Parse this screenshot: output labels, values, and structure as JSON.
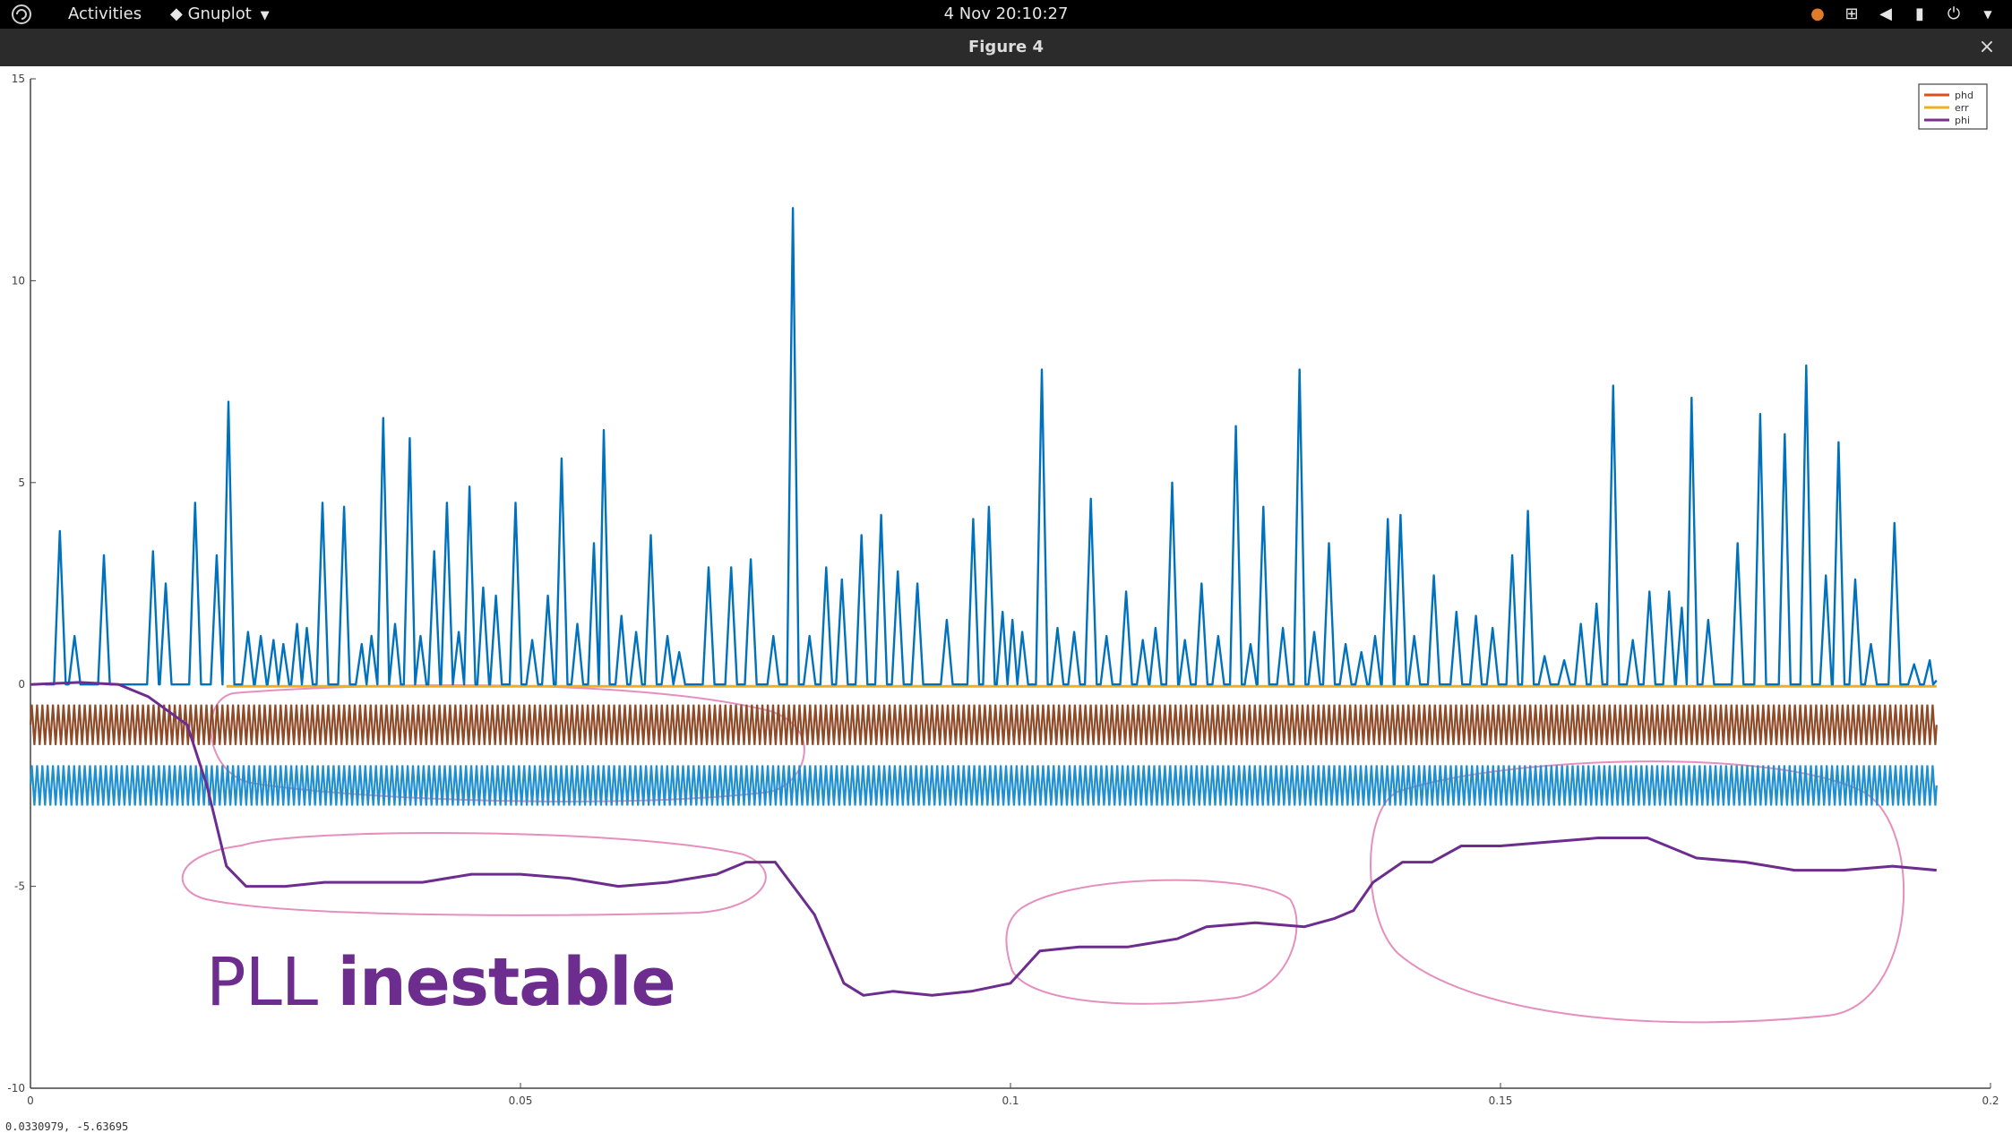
{
  "topbar": {
    "activities": "Activities",
    "app_name": "Gnuplot",
    "clock": "4 Nov  20:10:27",
    "tray_icons": [
      "notification-icon",
      "network-icon",
      "volume-icon",
      "battery-icon",
      "power-icon"
    ]
  },
  "window": {
    "title": "Figure 4",
    "close_glyph": "×"
  },
  "overlay": {
    "text_light": "PLL ",
    "text_bold": "inestable",
    "color": "#6d2d8e"
  },
  "status": {
    "coords": "0.0330979, -5.63695"
  },
  "chart_data": {
    "type": "line",
    "xlim": [
      0,
      0.2
    ],
    "ylim": [
      -10,
      15
    ],
    "x_ticks": [
      0,
      0.05,
      0.1,
      0.15,
      0.2
    ],
    "x_tick_labels": [
      "0",
      "0.05",
      "0.1",
      "0.15",
      "0.2"
    ],
    "y_ticks": [
      -10,
      -5,
      0,
      5,
      10,
      15
    ],
    "y_tick_labels": [
      "-10",
      "-5",
      "0",
      "5",
      "10",
      "15"
    ],
    "legend": {
      "placement": "top-right",
      "entries": [
        {
          "name": "phd",
          "color": "#d9531e"
        },
        {
          "name": "err",
          "color": "#edb120"
        },
        {
          "name": "phi",
          "color": "#7e2f8e"
        }
      ]
    },
    "spike_series": {
      "color": "#0072bd",
      "baseline": 0,
      "peaks": [
        [
          0.003,
          3.8
        ],
        [
          0.0045,
          1.2
        ],
        [
          0.0075,
          3.2
        ],
        [
          0.0125,
          3.3
        ],
        [
          0.0138,
          2.5
        ],
        [
          0.0168,
          4.5
        ],
        [
          0.019,
          3.2
        ],
        [
          0.0202,
          7.0
        ],
        [
          0.0222,
          1.3
        ],
        [
          0.0235,
          1.2
        ],
        [
          0.0248,
          1.1
        ],
        [
          0.0258,
          1.0
        ],
        [
          0.0272,
          1.5
        ],
        [
          0.0282,
          1.4
        ],
        [
          0.0298,
          4.5
        ],
        [
          0.032,
          4.4
        ],
        [
          0.0338,
          1.0
        ],
        [
          0.0348,
          1.2
        ],
        [
          0.036,
          6.6
        ],
        [
          0.0372,
          1.5
        ],
        [
          0.0387,
          6.1
        ],
        [
          0.0398,
          1.2
        ],
        [
          0.0412,
          3.3
        ],
        [
          0.0425,
          4.5
        ],
        [
          0.0437,
          1.3
        ],
        [
          0.0448,
          4.9
        ],
        [
          0.0462,
          2.4
        ],
        [
          0.0475,
          2.2
        ],
        [
          0.0495,
          4.5
        ],
        [
          0.0512,
          1.1
        ],
        [
          0.0528,
          2.2
        ],
        [
          0.0542,
          5.6
        ],
        [
          0.0558,
          1.5
        ],
        [
          0.0575,
          3.5
        ],
        [
          0.0585,
          6.3
        ],
        [
          0.0603,
          1.7
        ],
        [
          0.0618,
          1.3
        ],
        [
          0.0633,
          3.7
        ],
        [
          0.065,
          1.2
        ],
        [
          0.0662,
          0.8
        ],
        [
          0.0692,
          2.9
        ],
        [
          0.0715,
          2.9
        ],
        [
          0.0735,
          3.1
        ],
        [
          0.0758,
          1.2
        ],
        [
          0.0778,
          11.8
        ],
        [
          0.0795,
          1.2
        ],
        [
          0.0812,
          2.9
        ],
        [
          0.0828,
          2.6
        ],
        [
          0.0848,
          3.7
        ],
        [
          0.0868,
          4.2
        ],
        [
          0.0885,
          2.8
        ],
        [
          0.0905,
          2.5
        ],
        [
          0.0935,
          1.6
        ],
        [
          0.0962,
          4.1
        ],
        [
          0.0978,
          4.4
        ],
        [
          0.0992,
          1.8
        ],
        [
          0.1002,
          1.6
        ],
        [
          0.1012,
          1.3
        ],
        [
          0.1032,
          7.8
        ],
        [
          0.1048,
          1.4
        ],
        [
          0.1065,
          1.3
        ],
        [
          0.1082,
          4.6
        ],
        [
          0.1098,
          1.2
        ],
        [
          0.1118,
          2.3
        ],
        [
          0.1135,
          1.1
        ],
        [
          0.1148,
          1.4
        ],
        [
          0.1165,
          5.0
        ],
        [
          0.1178,
          1.1
        ],
        [
          0.1195,
          2.5
        ],
        [
          0.1212,
          1.2
        ],
        [
          0.123,
          6.4
        ],
        [
          0.1245,
          1.0
        ],
        [
          0.1258,
          4.4
        ],
        [
          0.1278,
          1.4
        ],
        [
          0.1295,
          7.8
        ],
        [
          0.131,
          1.3
        ],
        [
          0.1325,
          3.5
        ],
        [
          0.1342,
          1.0
        ],
        [
          0.1358,
          0.8
        ],
        [
          0.1372,
          1.2
        ],
        [
          0.1385,
          4.1
        ],
        [
          0.1398,
          4.2
        ],
        [
          0.1412,
          1.2
        ],
        [
          0.1432,
          2.7
        ],
        [
          0.1455,
          1.8
        ],
        [
          0.1475,
          1.7
        ],
        [
          0.1492,
          1.4
        ],
        [
          0.1512,
          3.2
        ],
        [
          0.1528,
          4.3
        ],
        [
          0.1545,
          0.7
        ],
        [
          0.1565,
          0.6
        ],
        [
          0.1582,
          1.5
        ],
        [
          0.1598,
          2.0
        ],
        [
          0.1615,
          7.4
        ],
        [
          0.1635,
          1.1
        ],
        [
          0.1652,
          2.3
        ],
        [
          0.1672,
          2.3
        ],
        [
          0.1685,
          1.9
        ],
        [
          0.1695,
          7.1
        ],
        [
          0.1712,
          1.6
        ],
        [
          0.1742,
          3.5
        ],
        [
          0.1765,
          6.7
        ],
        [
          0.179,
          6.2
        ],
        [
          0.1812,
          7.9
        ],
        [
          0.1832,
          2.7
        ],
        [
          0.1845,
          6.0
        ],
        [
          0.1862,
          2.6
        ],
        [
          0.1878,
          1.0
        ],
        [
          0.1902,
          4.0
        ],
        [
          0.1922,
          0.5
        ],
        [
          0.1938,
          0.6
        ]
      ]
    },
    "phd_series": {
      "color": "#8f4a28",
      "center": -1.0,
      "amplitude": 0.5,
      "cycles": 180
    },
    "blue_oscillation": {
      "color": "#1f8fd0",
      "center": -2.5,
      "amplitude": 0.5,
      "cycles": 180
    },
    "err_series": {
      "color": "#edb120",
      "value": 0.0
    },
    "phi_series": {
      "color": "#6d2d8e",
      "x": [
        0,
        0.005,
        0.009,
        0.012,
        0.016,
        0.018,
        0.02,
        0.022,
        0.026,
        0.03,
        0.035,
        0.04,
        0.045,
        0.05,
        0.055,
        0.06,
        0.065,
        0.07,
        0.073,
        0.076,
        0.08,
        0.083,
        0.085,
        0.088,
        0.092,
        0.096,
        0.1,
        0.103,
        0.107,
        0.112,
        0.117,
        0.12,
        0.125,
        0.13,
        0.133,
        0.135,
        0.137,
        0.14,
        0.143,
        0.146,
        0.15,
        0.155,
        0.16,
        0.165,
        0.17,
        0.175,
        0.18,
        0.185,
        0.19,
        0.1945
      ],
      "y": [
        0.0,
        0.05,
        0.0,
        -0.3,
        -1.0,
        -2.5,
        -4.5,
        -5.0,
        -5.0,
        -4.9,
        -4.9,
        -4.9,
        -4.7,
        -4.7,
        -4.8,
        -5.0,
        -4.9,
        -4.7,
        -4.4,
        -4.4,
        -5.7,
        -7.4,
        -7.7,
        -7.6,
        -7.7,
        -7.6,
        -7.4,
        -6.6,
        -6.5,
        -6.5,
        -6.3,
        -6.0,
        -5.9,
        -6.0,
        -5.8,
        -5.6,
        -4.9,
        -4.4,
        -4.4,
        -4.0,
        -4.0,
        -3.9,
        -3.8,
        -3.8,
        -4.3,
        -4.4,
        -4.6,
        -4.6,
        -4.5,
        -4.6
      ]
    }
  }
}
